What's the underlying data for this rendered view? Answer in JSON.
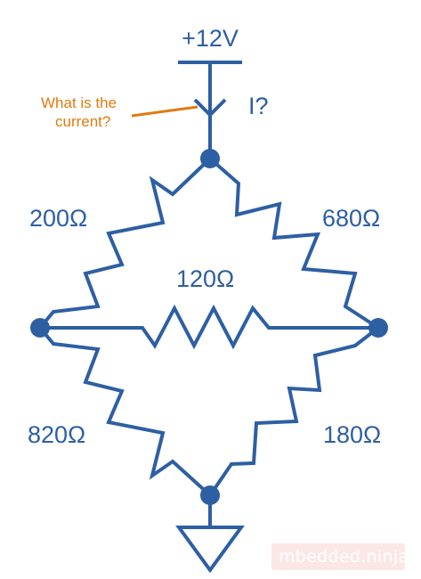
{
  "supply": {
    "label": "+12V"
  },
  "current": {
    "label": "I?"
  },
  "annotation": {
    "line1": "What is the",
    "line2": "current?"
  },
  "resistors": {
    "top_left": "200Ω",
    "top_right": "680Ω",
    "middle": "120Ω",
    "bottom_left": "820Ω",
    "bottom_right": "180Ω"
  },
  "watermark": "mbedded.ninja",
  "colors": {
    "circuit": "#2d5fa3",
    "annotation": "#e07b10"
  }
}
